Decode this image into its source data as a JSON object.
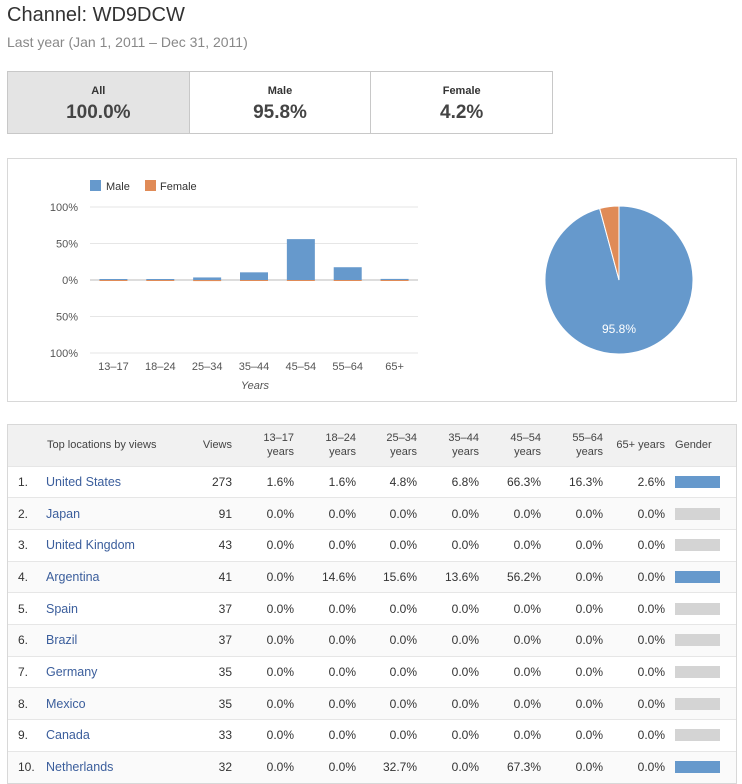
{
  "page": {
    "title": "Channel: WD9DCW",
    "subtitle": "Last year (Jan 1, 2011 – Dec 31, 2011)"
  },
  "tabs": [
    {
      "label": "All",
      "value": "100.0%",
      "active": true
    },
    {
      "label": "Male",
      "value": "95.8%",
      "active": false
    },
    {
      "label": "Female",
      "value": "4.2%",
      "active": false
    }
  ],
  "colors": {
    "male": "#6699cc",
    "female": "#e08b57",
    "gender_neutral": "#d4d4d4"
  },
  "chart_data": [
    {
      "type": "bar",
      "xlabel": "Years",
      "ylabel": "",
      "ylim": [
        -100,
        100
      ],
      "yticks": [
        "100%",
        "50%",
        "0%",
        "50%",
        "100%"
      ],
      "categories": [
        "13–17",
        "18–24",
        "25–34",
        "35–44",
        "45–54",
        "55–64",
        "65+"
      ],
      "series": [
        {
          "name": "Male",
          "values": [
            1.1,
            1.2,
            3.5,
            10.5,
            56.0,
            17.5,
            1.5
          ]
        },
        {
          "name": "Female",
          "values": [
            0.3,
            0.3,
            1.5,
            0.8,
            1.0,
            0.4,
            0.3
          ]
        }
      ],
      "legend_position": "top-left"
    },
    {
      "type": "pie",
      "slices": [
        {
          "name": "Male",
          "value": 95.8
        },
        {
          "name": "Female",
          "value": 4.2
        }
      ],
      "label": "95.8%"
    }
  ],
  "table": {
    "headers": {
      "location": "Top locations by views",
      "views": "Views",
      "a1317": "13–17 years",
      "a1824": "18–24 years",
      "a2534": "25–34 years",
      "a3544": "35–44 years",
      "a4554": "45–54 years",
      "a5564": "55–64 years",
      "a65": "65+ years",
      "gender": "Gender"
    },
    "rows": [
      {
        "rank": "1.",
        "name": "United States",
        "views": "273",
        "a1317": "1.6%",
        "a1824": "1.6%",
        "a2534": "4.8%",
        "a3544": "6.8%",
        "a4554": "66.3%",
        "a5564": "16.3%",
        "a65": "2.6%",
        "male_share": 1.0
      },
      {
        "rank": "2.",
        "name": "Japan",
        "views": "91",
        "a1317": "0.0%",
        "a1824": "0.0%",
        "a2534": "0.0%",
        "a3544": "0.0%",
        "a4554": "0.0%",
        "a5564": "0.0%",
        "a65": "0.0%",
        "male_share": null
      },
      {
        "rank": "3.",
        "name": "United Kingdom",
        "views": "43",
        "a1317": "0.0%",
        "a1824": "0.0%",
        "a2534": "0.0%",
        "a3544": "0.0%",
        "a4554": "0.0%",
        "a5564": "0.0%",
        "a65": "0.0%",
        "male_share": null
      },
      {
        "rank": "4.",
        "name": "Argentina",
        "views": "41",
        "a1317": "0.0%",
        "a1824": "14.6%",
        "a2534": "15.6%",
        "a3544": "13.6%",
        "a4554": "56.2%",
        "a5564": "0.0%",
        "a65": "0.0%",
        "male_share": 1.0
      },
      {
        "rank": "5.",
        "name": "Spain",
        "views": "37",
        "a1317": "0.0%",
        "a1824": "0.0%",
        "a2534": "0.0%",
        "a3544": "0.0%",
        "a4554": "0.0%",
        "a5564": "0.0%",
        "a65": "0.0%",
        "male_share": null
      },
      {
        "rank": "6.",
        "name": "Brazil",
        "views": "37",
        "a1317": "0.0%",
        "a1824": "0.0%",
        "a2534": "0.0%",
        "a3544": "0.0%",
        "a4554": "0.0%",
        "a5564": "0.0%",
        "a65": "0.0%",
        "male_share": null
      },
      {
        "rank": "7.",
        "name": "Germany",
        "views": "35",
        "a1317": "0.0%",
        "a1824": "0.0%",
        "a2534": "0.0%",
        "a3544": "0.0%",
        "a4554": "0.0%",
        "a5564": "0.0%",
        "a65": "0.0%",
        "male_share": null
      },
      {
        "rank": "8.",
        "name": "Mexico",
        "views": "35",
        "a1317": "0.0%",
        "a1824": "0.0%",
        "a2534": "0.0%",
        "a3544": "0.0%",
        "a4554": "0.0%",
        "a5564": "0.0%",
        "a65": "0.0%",
        "male_share": null
      },
      {
        "rank": "9.",
        "name": "Canada",
        "views": "33",
        "a1317": "0.0%",
        "a1824": "0.0%",
        "a2534": "0.0%",
        "a3544": "0.0%",
        "a4554": "0.0%",
        "a5564": "0.0%",
        "a65": "0.0%",
        "male_share": null
      },
      {
        "rank": "10.",
        "name": "Netherlands",
        "views": "32",
        "a1317": "0.0%",
        "a1824": "0.0%",
        "a2534": "32.7%",
        "a3544": "0.0%",
        "a4554": "67.3%",
        "a5564": "0.0%",
        "a65": "0.0%",
        "male_share": 1.0
      }
    ]
  }
}
